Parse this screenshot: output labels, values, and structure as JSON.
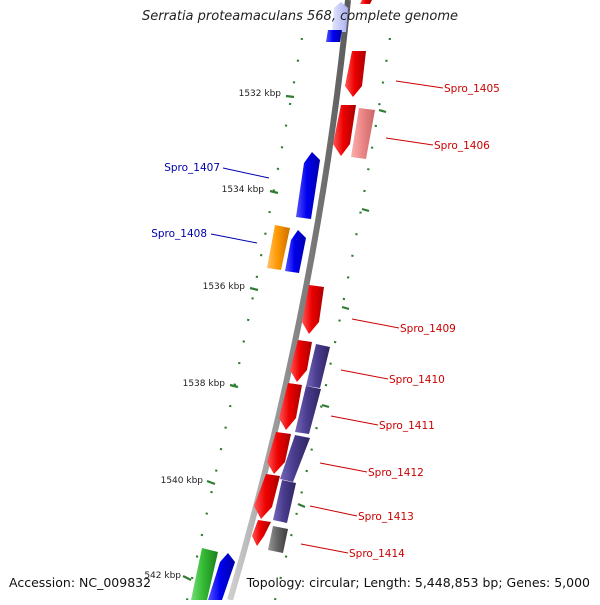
{
  "title": "Serratia proteamaculans 568, complete genome",
  "footer": {
    "accession": "Accession: NC_009832",
    "topology": "Topology: circular; Length: 5,448,853 bp; Genes: 5,000"
  },
  "ticks": [
    {
      "label": "1532 kbp"
    },
    {
      "label": "1534 kbp"
    },
    {
      "label": "1536 kbp"
    },
    {
      "label": "1538 kbp"
    },
    {
      "label": "1540 kbp"
    },
    {
      "label": "542 kbp"
    }
  ],
  "gene_labels_left": [
    {
      "label": "Spro_1407"
    },
    {
      "label": "Spro_1408"
    }
  ],
  "gene_labels_right": [
    {
      "label": "Spro_1405"
    },
    {
      "label": "Spro_1406"
    },
    {
      "label": "Spro_1409"
    },
    {
      "label": "Spro_1410"
    },
    {
      "label": "Spro_1411"
    },
    {
      "label": "Spro_1412"
    },
    {
      "label": "Spro_1413"
    },
    {
      "label": "Spro_1414"
    }
  ],
  "colors": {
    "forward_cds": "#0000ee",
    "reverse_cds": "#ee0000",
    "reverse_pale": "#ee8888",
    "operon": "#4a3d8f",
    "orange_cds": "#ff9900",
    "green_cds": "#33bb33",
    "gray_cds": "#666666",
    "backbone": "#8c8c8c",
    "tick": "#2e7d32",
    "label_left": "#0000aa",
    "label_right": "#cc0000"
  }
}
